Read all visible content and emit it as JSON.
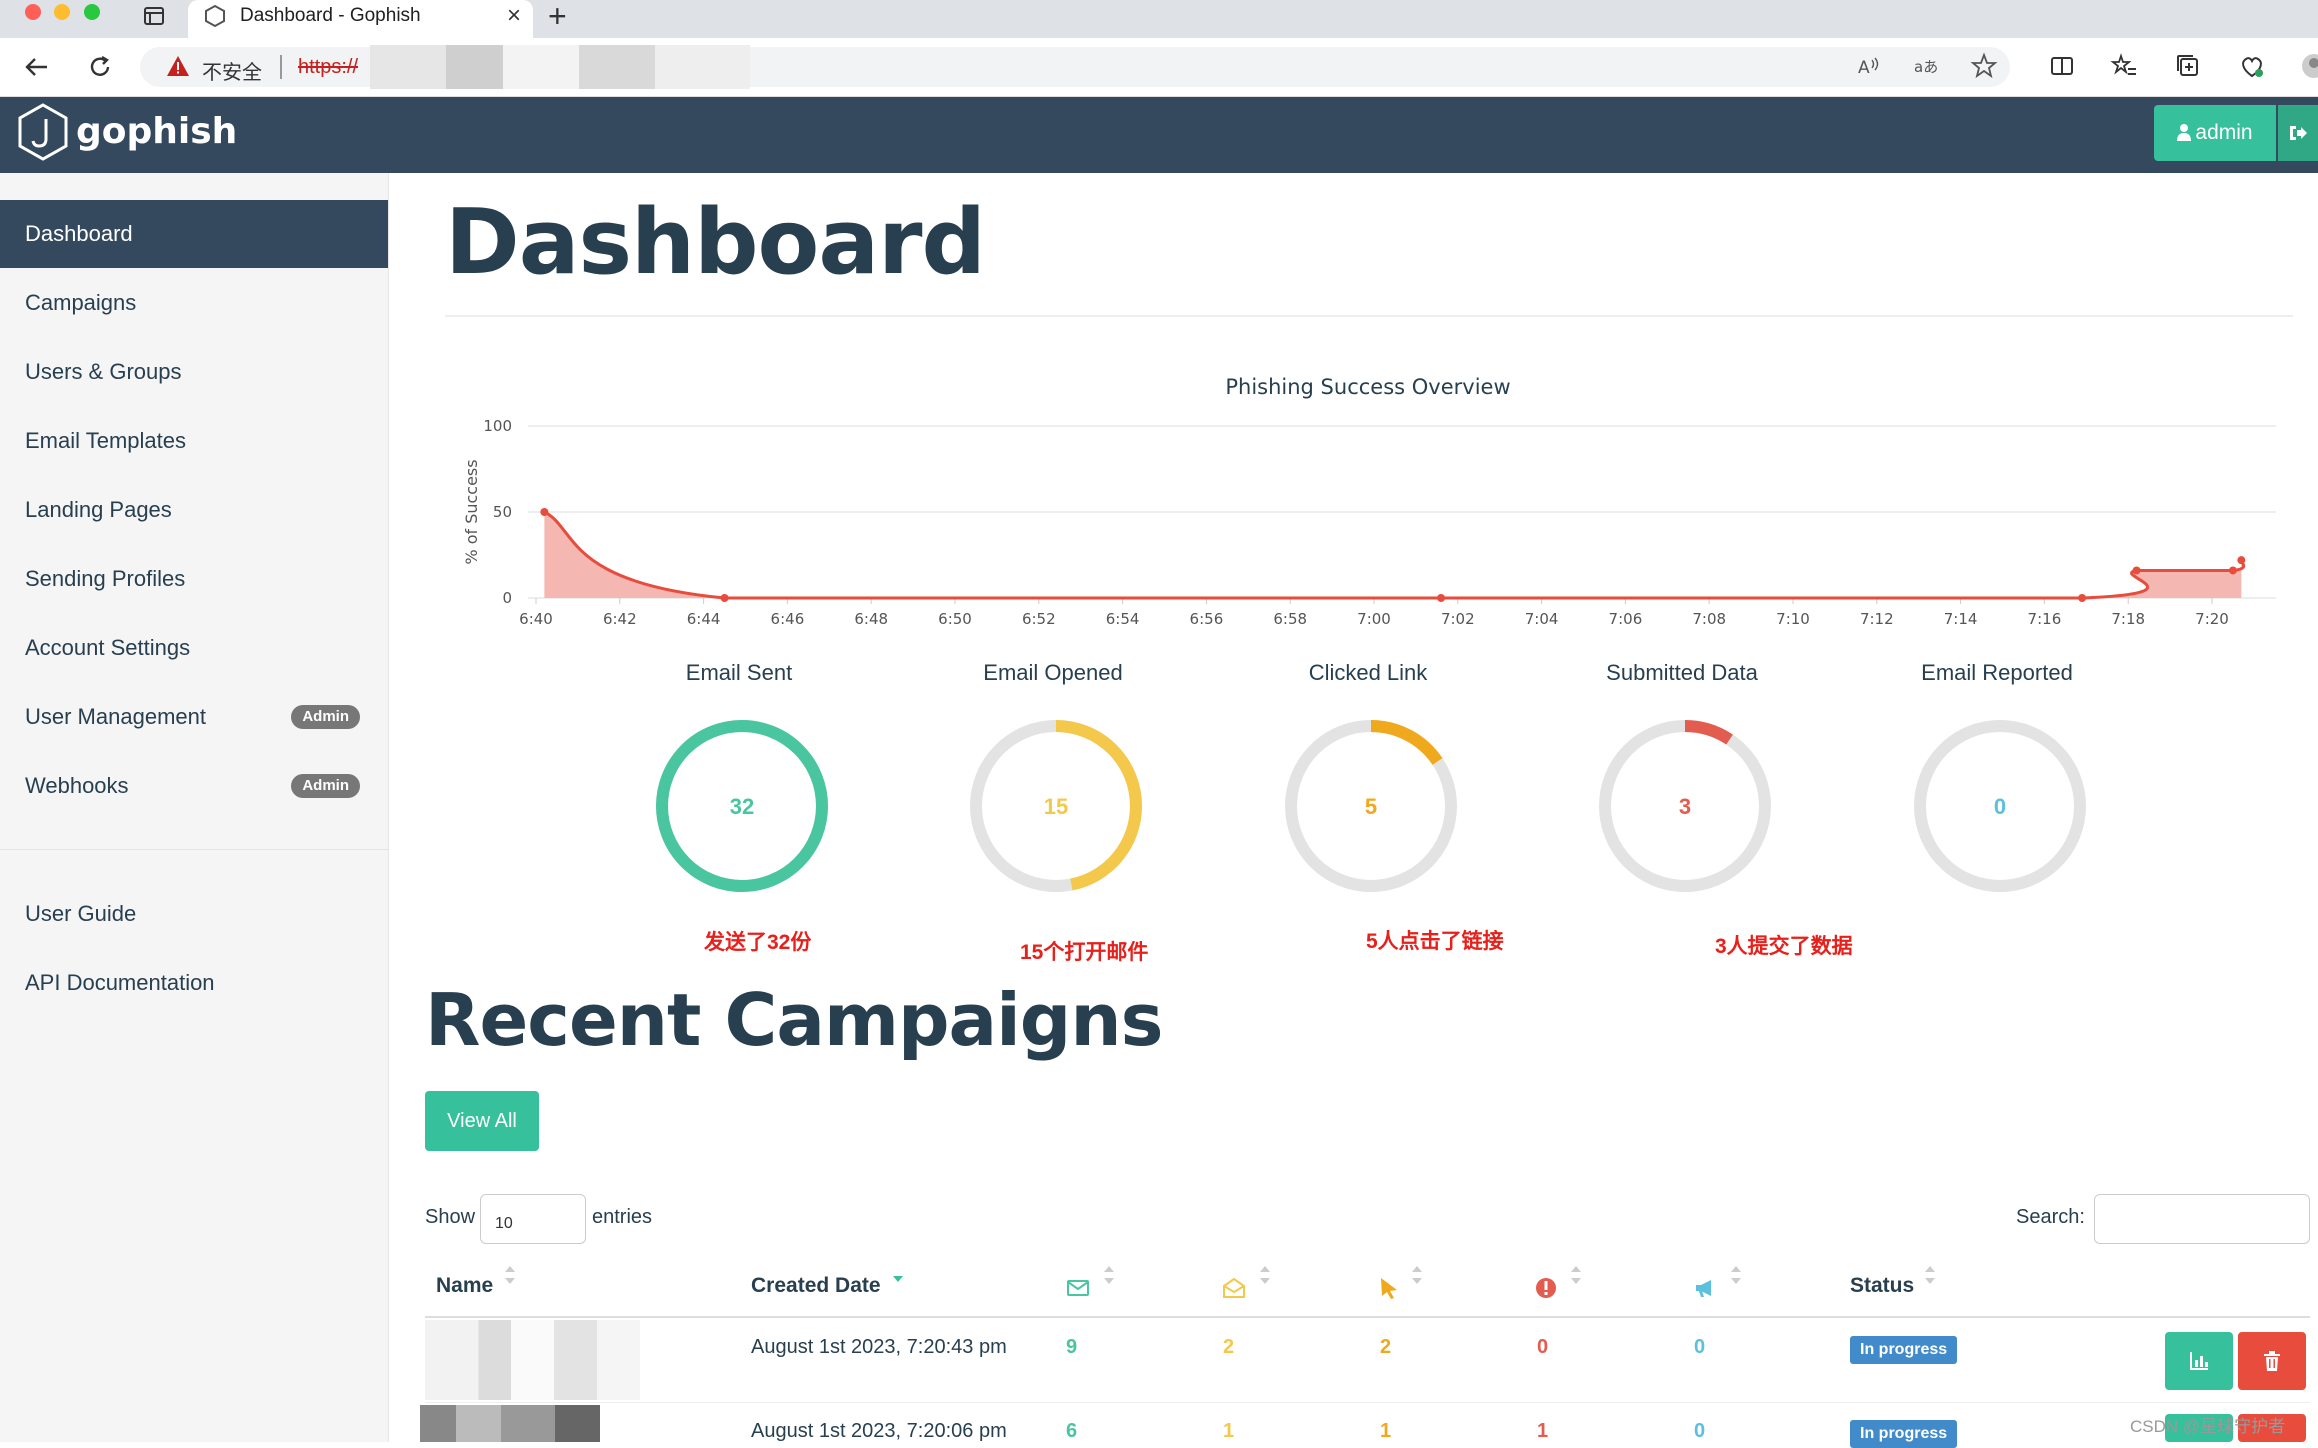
{
  "browser": {
    "tab_title": "Dashboard - Gophish",
    "security_text": "不安全",
    "url_scheme": "https://"
  },
  "navbar": {
    "brand": "gophish",
    "user_button": "admin"
  },
  "sidebar": {
    "items": [
      {
        "label": "Dashboard",
        "active": true
      },
      {
        "label": "Campaigns"
      },
      {
        "label": "Users & Groups"
      },
      {
        "label": "Email Templates"
      },
      {
        "label": "Landing Pages"
      },
      {
        "label": "Sending Profiles"
      },
      {
        "label": "Account Settings"
      },
      {
        "label": "User Management",
        "badge": "Admin"
      },
      {
        "label": "Webhooks",
        "badge": "Admin"
      }
    ],
    "secondary": [
      {
        "label": "User Guide"
      },
      {
        "label": "API Documentation"
      }
    ]
  },
  "page": {
    "title": "Dashboard"
  },
  "chart_data": {
    "type": "area",
    "title": "Phishing Success Overview",
    "xlabel": "",
    "ylabel": "% of Success",
    "ylim": [
      0,
      100
    ],
    "yticks": [
      "0",
      "50",
      "100"
    ],
    "xticks": [
      "6:40",
      "6:42",
      "6:44",
      "6:46",
      "6:48",
      "6:50",
      "6:52",
      "6:54",
      "6:56",
      "6:58",
      "7:00",
      "7:02",
      "7:04",
      "7:06",
      "7:08",
      "7:10",
      "7:12",
      "7:14",
      "7:16",
      "7:18",
      "7:20"
    ],
    "x_minutes": [
      0.2,
      4.5,
      21.6,
      36.9,
      38.2,
      40.5,
      40.7
    ],
    "values": [
      50,
      0,
      0,
      0,
      16,
      16,
      22
    ],
    "grid": true,
    "color": "#e74c3c",
    "fill": "#f5b7b1"
  },
  "stats": [
    {
      "label": "Email Sent",
      "value": "32",
      "fraction": 1.0,
      "color": "#49c5a0",
      "annotation": "发送了32份"
    },
    {
      "label": "Email Opened",
      "value": "15",
      "fraction": 0.469,
      "color": "#f4c84b",
      "annotation": "15个打开邮件"
    },
    {
      "label": "Clicked Link",
      "value": "5",
      "fraction": 0.156,
      "color": "#f0a81d",
      "annotation": "5人点击了链接"
    },
    {
      "label": "Submitted Data",
      "value": "3",
      "fraction": 0.094,
      "color": "#e25d4f",
      "annotation": "3人提交了数据"
    },
    {
      "label": "Email Reported",
      "value": "0",
      "fraction": 0.0,
      "color": "#5bc0de",
      "annotation": ""
    }
  ],
  "recent": {
    "title": "Recent Campaigns",
    "view_all": "View All",
    "show_label": "Show",
    "page_length": "10",
    "entries_label": "entries",
    "search_label": "Search:",
    "columns": {
      "name": "Name",
      "created": "Created Date",
      "sent_icon": "envelope-icon",
      "opened_icon": "envelope-open-icon",
      "clicked_icon": "pointer-icon",
      "submitted_icon": "exclamation-circle-icon",
      "reported_icon": "bullhorn-icon",
      "status": "Status"
    },
    "rows": [
      {
        "created": "August 1st 2023, 7:20:43 pm",
        "sent": "9",
        "opened": "2",
        "clicked": "2",
        "submitted": "0",
        "reported": "0",
        "status": "In progress"
      },
      {
        "created": "August 1st 2023, 7:20:06 pm",
        "sent": "6",
        "opened": "1",
        "clicked": "1",
        "submitted": "1",
        "reported": "0",
        "status": "In progress"
      }
    ]
  },
  "watermark": "CSDN @星球守护者"
}
